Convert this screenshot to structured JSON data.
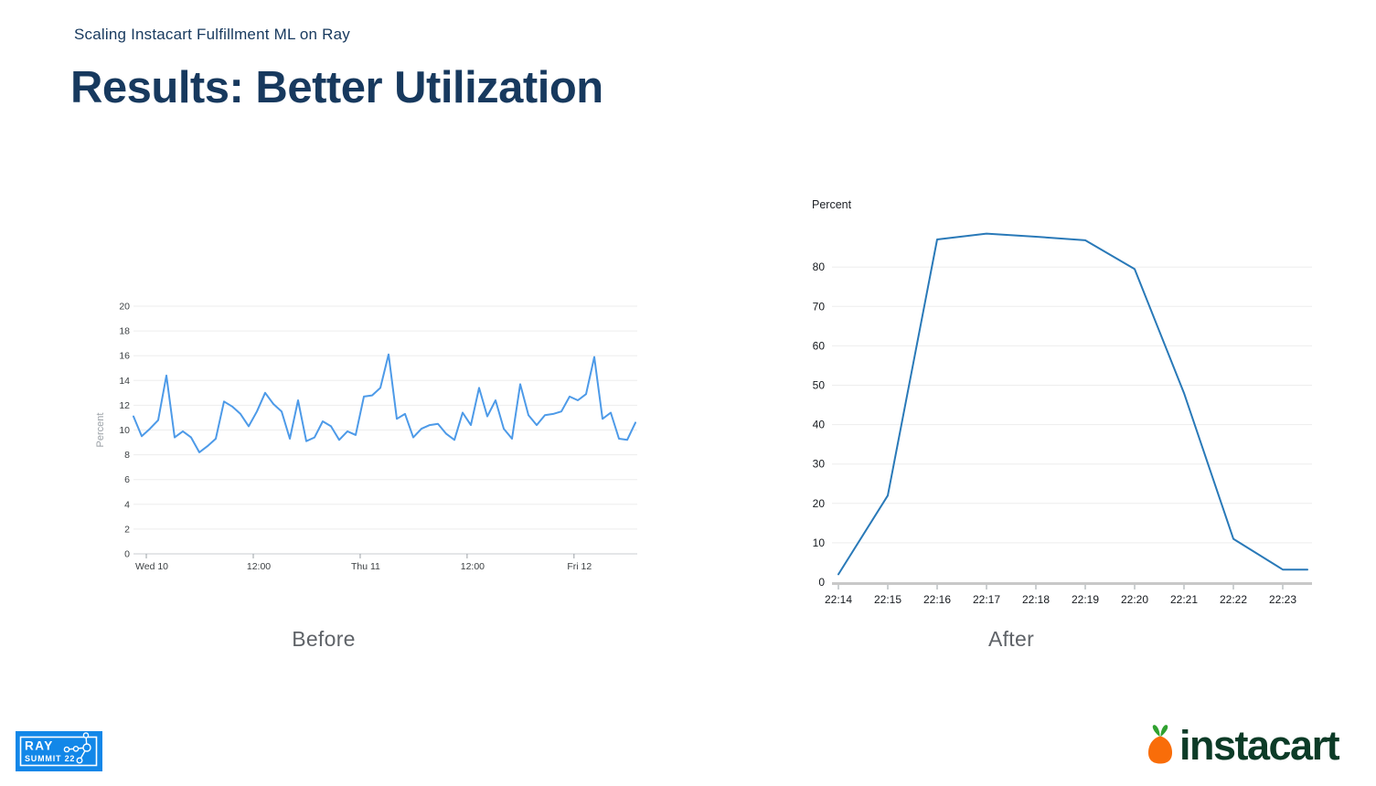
{
  "page": {
    "header": "Scaling Instacart Fulfillment ML on Ray",
    "title": "Results: Better Utilization",
    "title_color": "#17395E",
    "background": "#ffffff"
  },
  "captions": {
    "before": "Before",
    "after": "After"
  },
  "chart_data": [
    {
      "id": "before",
      "type": "line",
      "title": "Before",
      "ylabel": "Percent",
      "ylabel_position": "left-rotated",
      "ylim": [
        0,
        20
      ],
      "ytick_step": 2,
      "grid": true,
      "legend": "none",
      "line_color": "#4D9AE8",
      "xticks": [
        "Wed 10",
        "12:00",
        "Thu 11",
        "12:00",
        "Fri 12"
      ],
      "values": [
        11.1,
        9.5,
        10.1,
        10.8,
        14.4,
        9.4,
        9.9,
        9.4,
        8.2,
        8.7,
        9.3,
        12.3,
        11.9,
        11.3,
        10.3,
        11.5,
        13.0,
        12.1,
        11.5,
        9.3,
        12.4,
        9.1,
        9.4,
        10.7,
        10.3,
        9.2,
        9.9,
        9.6,
        12.7,
        12.8,
        13.4,
        16.1,
        10.9,
        11.3,
        9.4,
        10.1,
        10.4,
        10.5,
        9.7,
        9.2,
        11.4,
        10.4,
        13.4,
        11.1,
        12.4,
        10.1,
        9.3,
        13.7,
        11.2,
        10.4,
        11.2,
        11.3,
        11.5,
        12.7,
        12.4,
        12.9,
        15.9,
        10.9,
        11.4,
        9.3,
        9.2,
        10.6
      ]
    },
    {
      "id": "after",
      "type": "line",
      "title": "After",
      "ylabel": "Percent",
      "ylabel_position": "top",
      "ylim": [
        0,
        90
      ],
      "ytick_step": 10,
      "ytick_max": 80,
      "grid": true,
      "legend": "none",
      "line_color": "#2979B8",
      "xticks": [
        "22:14",
        "22:15",
        "22:16",
        "22:17",
        "22:18",
        "22:19",
        "22:20",
        "22:21",
        "22:22",
        "22:23"
      ],
      "x": [
        0,
        1,
        2,
        3,
        4,
        5,
        6,
        7,
        8,
        9,
        9.5
      ],
      "values": [
        2,
        22,
        87,
        88.5,
        87.7,
        86.8,
        79.5,
        48,
        11,
        3.2,
        3.2
      ]
    }
  ],
  "footer": {
    "ray": {
      "line1": "RAY",
      "line2": "SUMMIT 22",
      "color": "#1287E8"
    },
    "instacart": {
      "text": "instacart",
      "text_color": "#0C3B27",
      "carrot_color": "#F96D09",
      "leaf_color": "#2FA12F"
    }
  }
}
